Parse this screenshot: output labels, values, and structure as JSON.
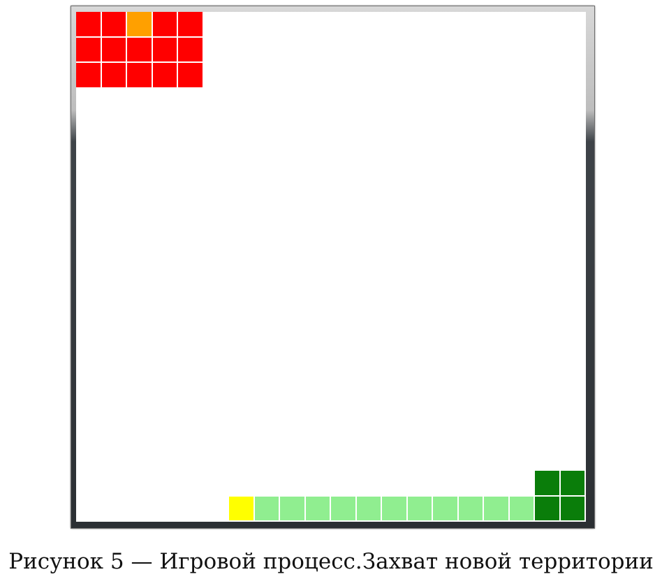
{
  "colors": {
    "red_territory": "#ff0000",
    "red_player": "#ffa000",
    "green_territory": "#0a7d0a",
    "green_trail": "#90ee90",
    "green_player": "#ffff00",
    "board": "#ffffff"
  },
  "board": {
    "grid_cells": 20,
    "cells": [
      {
        "col": 0,
        "row": 0,
        "kind": "red_territory"
      },
      {
        "col": 1,
        "row": 0,
        "kind": "red_territory"
      },
      {
        "col": 2,
        "row": 0,
        "kind": "red_player"
      },
      {
        "col": 3,
        "row": 0,
        "kind": "red_territory"
      },
      {
        "col": 4,
        "row": 0,
        "kind": "red_territory"
      },
      {
        "col": 0,
        "row": 1,
        "kind": "red_territory"
      },
      {
        "col": 1,
        "row": 1,
        "kind": "red_territory"
      },
      {
        "col": 2,
        "row": 1,
        "kind": "red_territory"
      },
      {
        "col": 3,
        "row": 1,
        "kind": "red_territory"
      },
      {
        "col": 4,
        "row": 1,
        "kind": "red_territory"
      },
      {
        "col": 0,
        "row": 2,
        "kind": "red_territory"
      },
      {
        "col": 1,
        "row": 2,
        "kind": "red_territory"
      },
      {
        "col": 2,
        "row": 2,
        "kind": "red_territory"
      },
      {
        "col": 3,
        "row": 2,
        "kind": "red_territory"
      },
      {
        "col": 4,
        "row": 2,
        "kind": "red_territory"
      },
      {
        "col": 18,
        "row": 18,
        "kind": "green_territory"
      },
      {
        "col": 19,
        "row": 18,
        "kind": "green_territory"
      },
      {
        "col": 18,
        "row": 19,
        "kind": "green_territory"
      },
      {
        "col": 19,
        "row": 19,
        "kind": "green_territory"
      },
      {
        "col": 6,
        "row": 19,
        "kind": "green_player"
      },
      {
        "col": 7,
        "row": 19,
        "kind": "green_trail"
      },
      {
        "col": 8,
        "row": 19,
        "kind": "green_trail"
      },
      {
        "col": 9,
        "row": 19,
        "kind": "green_trail"
      },
      {
        "col": 10,
        "row": 19,
        "kind": "green_trail"
      },
      {
        "col": 11,
        "row": 19,
        "kind": "green_trail"
      },
      {
        "col": 12,
        "row": 19,
        "kind": "green_trail"
      },
      {
        "col": 13,
        "row": 19,
        "kind": "green_trail"
      },
      {
        "col": 14,
        "row": 19,
        "kind": "green_trail"
      },
      {
        "col": 15,
        "row": 19,
        "kind": "green_trail"
      },
      {
        "col": 16,
        "row": 19,
        "kind": "green_trail"
      },
      {
        "col": 17,
        "row": 19,
        "kind": "green_trail"
      }
    ]
  },
  "caption": "Рисунок 5 — Игровой процесс.Захват новой территории"
}
